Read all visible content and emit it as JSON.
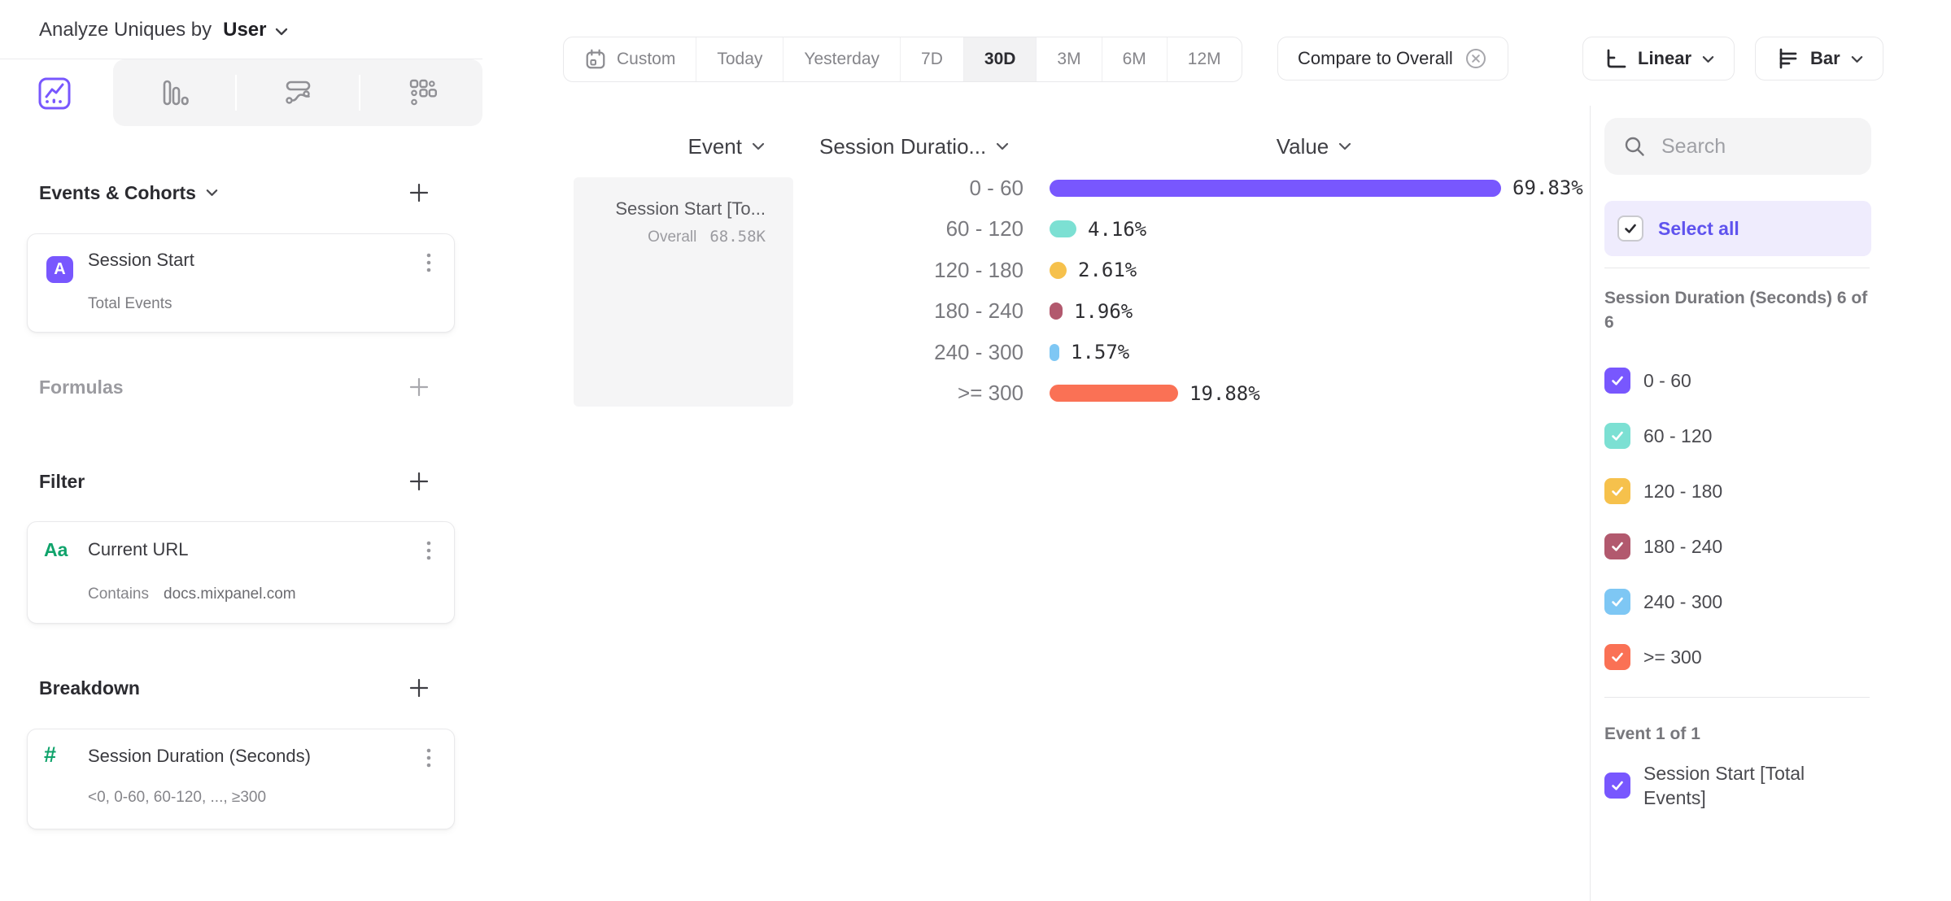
{
  "theme": {
    "accent": "#7857FE",
    "accent_text": "#5F53EE",
    "text_dark": "#2B2B30",
    "text_muted": "#8A8A8F",
    "green": "#0FA36B",
    "lavender": "#EFECFD",
    "border": "#E9E9EB"
  },
  "header": {
    "title_prefix": "Analyze Uniques by",
    "entity": "User"
  },
  "view_tabs": {
    "active": "insights",
    "tabs": [
      "insights",
      "bars",
      "flows",
      "retention"
    ]
  },
  "sidebar": {
    "events_section": {
      "title": "Events & Cohorts",
      "card": {
        "badge": "A",
        "title": "Session Start",
        "subtitle": "Total Events"
      }
    },
    "formulas_label": "Formulas",
    "filter_section": {
      "title": "Filter",
      "card": {
        "badge": "Aa",
        "title": "Current URL",
        "operator": "Contains",
        "value": "docs.mixpanel.com"
      }
    },
    "breakdown_section": {
      "title": "Breakdown",
      "card": {
        "badge": "#",
        "title": "Session Duration (Seconds)",
        "subtitle": "<0, 0-60, 60-120, ..., ≥300"
      }
    }
  },
  "toolbar": {
    "date_ranges": [
      "Custom",
      "Today",
      "Yesterday",
      "7D",
      "30D",
      "3M",
      "6M",
      "12M"
    ],
    "active_range": "30D",
    "compare_label": "Compare to Overall",
    "scale_label": "Linear",
    "chart_type_label": "Bar"
  },
  "table": {
    "columns": [
      "Event",
      "Session Duratio...",
      "Value"
    ],
    "event_cell": {
      "title": "Session Start [To...",
      "overall_label": "Overall",
      "overall_value": "68.58K"
    }
  },
  "chart_data": {
    "type": "bar",
    "orientation": "horizontal",
    "series_name": "Session Start [Total Events]",
    "overall_label": "Overall",
    "overall_value": "68.58K",
    "categories": [
      "0 - 60",
      "60 - 120",
      "120 - 180",
      "180 - 240",
      "240 - 300",
      ">= 300"
    ],
    "values": [
      69.83,
      4.16,
      2.61,
      1.96,
      1.57,
      19.88
    ],
    "value_labels": [
      "69.83%",
      "4.16%",
      "2.61%",
      "1.96%",
      "1.57%",
      "19.88%"
    ],
    "colors": [
      "#7857FE",
      "#7CE0D3",
      "#F6C14C",
      "#B2596E",
      "#7EC7F4",
      "#FA7155"
    ],
    "unit": "%",
    "xlim": [
      0,
      70.3
    ],
    "grid": false,
    "legend": "right-panel-checkboxes"
  },
  "right_panel": {
    "search_placeholder": "Search",
    "select_all_label": "Select all",
    "group_label": "Session Duration (Seconds) 6 of 6",
    "items": [
      {
        "label": "0 - 60",
        "color": "#7857FE",
        "checked": true
      },
      {
        "label": "60 - 120",
        "color": "#7CE0D3",
        "checked": true
      },
      {
        "label": "120 - 180",
        "color": "#F6C14C",
        "checked": true
      },
      {
        "label": "180 - 240",
        "color": "#B2596E",
        "checked": true
      },
      {
        "label": "240 - 300",
        "color": "#7EC7F4",
        "checked": true
      },
      {
        "label": ">= 300",
        "color": "#FA7155",
        "checked": true
      }
    ],
    "event_group_label": "Event 1 of 1",
    "event_item": {
      "label": "Session Start [Total Events]",
      "color": "#7857FE",
      "checked": true
    }
  }
}
